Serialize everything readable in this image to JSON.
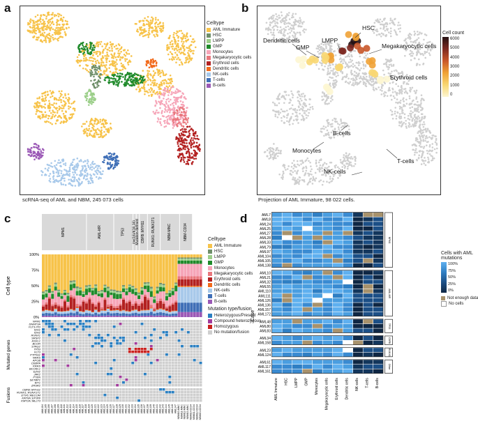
{
  "panels": {
    "a": {
      "label": "a",
      "caption": "scRNA-seq of AML and NBM, 245 073 cells",
      "legend_title": "Celltype"
    },
    "b": {
      "label": "b",
      "caption": "Projection of AML Immature, 98 022 cells.",
      "colorbar_title": "Cell count",
      "colorbar_ticks": [
        "6000",
        "5000",
        "4000",
        "3000",
        "2000",
        "1000",
        "0"
      ],
      "annotations": [
        "HSC",
        "Dendritic cells",
        "GMP",
        "LMPP",
        "Megakaryocytic cells",
        "Erythroid cells",
        "B-cells",
        "Monocytes",
        "T-cells",
        "NK-cells"
      ]
    },
    "c": {
      "label": "c",
      "groups": [
        "NPM1",
        "AML-MR",
        "TP53",
        "inv(16)/t(16;16)",
        "Mutation-defined",
        "CBFB::MYH11",
        "RUNX1::RUNX1T1",
        "NBM-MNC",
        "NBM-CD34"
      ],
      "y_ticks": [
        "100%",
        "75%",
        "50%",
        "25%",
        "0%"
      ],
      "y_axis_label": "Cell type",
      "mut_axis_label": "Mutated genes",
      "fus_axis_label": "Fusions",
      "legend_title": "Celltype",
      "mutation_legend_title": "Mutation type/fusion",
      "mutation_types": [
        {
          "label": "Heterozygous/Present",
          "color": "#2a7fc1"
        },
        {
          "label": "Compound heterozygous",
          "color": "#a23b9c"
        },
        {
          "label": "Homozygous",
          "color": "#c9211e"
        },
        {
          "label": "No mutation/fusion",
          "color": "#cfcfcf"
        }
      ],
      "genes": [
        "NPM1",
        "DNMT3A",
        "FLT3-ITD",
        "IDH1",
        "IDH2",
        "RUNX1",
        "SRSF2",
        "ASXL1",
        "BCOR",
        "STAG2",
        "TP53",
        "FLT3",
        "PTPN11",
        "NRAS",
        "APOB",
        "CEBPA",
        "KRAS",
        "BCORL1",
        "EZH2",
        "JAK2",
        "PTEN",
        "SETBP1",
        "WT1",
        "ZRSR2"
      ],
      "fusions": [
        "CBFB::MYH11",
        "RUNX1::RUNX1T1",
        "ETV6::MECOM",
        "KAT6A::EP300",
        "KMT2A::MLLT3"
      ],
      "samples": [
        "AML104",
        "AML105",
        "AML106",
        "AML107",
        "AML108",
        "AML109",
        "AML110",
        "AML111",
        "AML112",
        "AML113",
        "AML114",
        "AML115",
        "AML116",
        "AML117",
        "AML118",
        "AML119",
        "AML120",
        "AML121",
        "AML122",
        "AML123",
        "AML124",
        "AML125",
        "AML126",
        "AML127",
        "AML128",
        "AML129",
        "AML130",
        "AML131",
        "AML132",
        "AML133",
        "AML134",
        "AML135",
        "AML136",
        "AML137",
        "AML138",
        "AML139",
        "AML140",
        "AML141",
        "AML142",
        "AML143",
        "AML144",
        "AML145",
        "AML146",
        "AML147",
        "NBM10-MNC",
        "NBM11-MNC",
        "NBM12-MNC",
        "NBM13-MNC",
        "NBM10-CD34",
        "NBM11-CD34",
        "NBM12-CD34",
        "NBM13-CD34"
      ]
    },
    "d": {
      "label": "d",
      "y_axis_label": "Case",
      "legend_title": "Cells with AML mutations",
      "legend_ticks": [
        "100%",
        "75%",
        "50%",
        "25%",
        "0%"
      ],
      "legend_extra": [
        {
          "label": "Not enough data",
          "color": "#a8926c"
        },
        {
          "label": "No cells",
          "color": "#ffffff"
        }
      ],
      "columns": [
        "AML Immature",
        "HSC",
        "LMPP",
        "GMP",
        "Monocytes",
        "Megakaryocytic cells",
        "Erythroid cells",
        "Dendritic cells",
        "NK-cells",
        "T-cells",
        "B-cells"
      ],
      "groups": [
        {
          "name": "NPM1",
          "cases": [
            "AML7",
            "AML8",
            "AML24",
            "AML25",
            "AML27",
            "AML28",
            "AML33",
            "AML79",
            "AML97",
            "AML104",
            "AML105",
            "AML138"
          ]
        },
        {
          "name": "AML-MR",
          "cases": [
            "AML10",
            "AML21",
            "AML32",
            "AML55",
            "AML110",
            "AML111",
            "AML126",
            "AML136",
            "AML157",
            "AML172"
          ]
        },
        {
          "name": "TP53",
          "cases": [
            "AML48",
            "AML80",
            "AML83"
          ]
        },
        {
          "name": "CBFB",
          "cases": [
            "AML34",
            "AML158"
          ]
        },
        {
          "name": "RUNX1",
          "cases": [
            "AML23",
            "AML124"
          ]
        },
        {
          "name": "Other",
          "cases": [
            "AML61",
            "AML117",
            "AML161"
          ]
        }
      ]
    }
  },
  "celltypes": [
    {
      "name": "AML Immature",
      "color": "#f7c34a"
    },
    {
      "name": "HSC",
      "color": "#6f8f6a"
    },
    {
      "name": "LMPP",
      "color": "#9ccf8a"
    },
    {
      "name": "GMP",
      "color": "#1f8a2a"
    },
    {
      "name": "Monocytes",
      "color": "#f6a5b8"
    },
    {
      "name": "Megakaryocytic cells",
      "color": "#e9777d"
    },
    {
      "name": "Erythroid cells",
      "color": "#b32121"
    },
    {
      "name": "Dendritic cells",
      "color": "#f26a1b"
    },
    {
      "name": "NK-cells",
      "color": "#a8c9ea"
    },
    {
      "name": "T-cells",
      "color": "#3f6fb7"
    },
    {
      "name": "B-cells",
      "color": "#9b59b6"
    }
  ]
}
